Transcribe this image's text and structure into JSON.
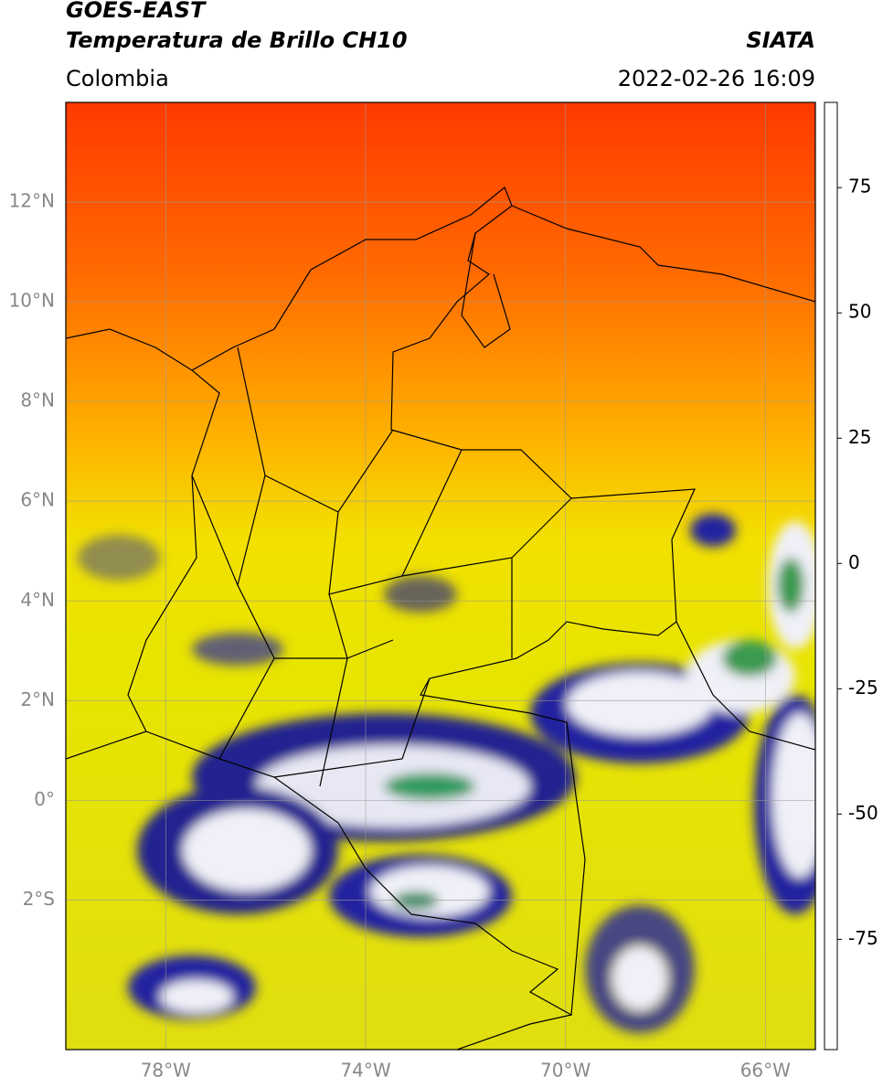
{
  "header": {
    "product": "GOES-EAST",
    "title": "Temperatura de Brillo CH10",
    "source": "SIATA",
    "region": "Colombia",
    "datetime": "2022-02-26 16:09"
  },
  "map": {
    "lon_range": [
      -80,
      -65
    ],
    "lat_range": [
      -5,
      14
    ],
    "lat_ticks": [
      {
        "value": 12,
        "label": "12°N"
      },
      {
        "value": 10,
        "label": "10°N"
      },
      {
        "value": 8,
        "label": "8°N"
      },
      {
        "value": 6,
        "label": "6°N"
      },
      {
        "value": 4,
        "label": "4°N"
      },
      {
        "value": 2,
        "label": "2°N"
      },
      {
        "value": 0,
        "label": "0°"
      },
      {
        "value": -2,
        "label": "2°S"
      }
    ],
    "lon_ticks": [
      {
        "value": -78,
        "label": "78°W"
      },
      {
        "value": -74,
        "label": "74°W"
      },
      {
        "value": -70,
        "label": "70°W"
      },
      {
        "value": -66,
        "label": "66°W"
      }
    ],
    "grid": true
  },
  "colorbar": {
    "range": [
      -97,
      92
    ],
    "ticks": [
      75,
      50,
      25,
      0,
      -25,
      -50,
      -75
    ],
    "colormap": [
      {
        "value": -97,
        "color": "#ffffff"
      },
      {
        "value": -92,
        "color": "#ffffff"
      },
      {
        "value": -91,
        "color": "#00e5e5"
      },
      {
        "value": -84,
        "color": "#20b0a0"
      },
      {
        "value": -70,
        "color": "#2e8b3e"
      },
      {
        "value": -60,
        "color": "#8fc08f"
      },
      {
        "value": -52,
        "color": "#ffffff"
      },
      {
        "value": -40,
        "color": "#9090d0"
      },
      {
        "value": -28,
        "color": "#101080"
      },
      {
        "value": -24,
        "color": "#40406a"
      },
      {
        "value": -20,
        "color": "#909030"
      },
      {
        "value": -12,
        "color": "#e8e800"
      },
      {
        "value": -5,
        "color": "#ffd000"
      },
      {
        "value": 0,
        "color": "#ff9000"
      },
      {
        "value": 8,
        "color": "#ff2000"
      },
      {
        "value": 9,
        "color": "#000000"
      },
      {
        "value": 92,
        "color": "#000000"
      }
    ]
  }
}
